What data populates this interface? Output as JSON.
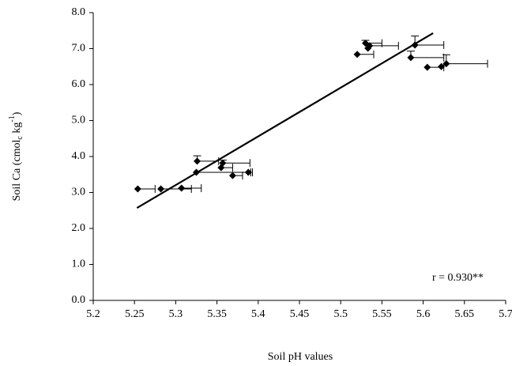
{
  "chart_data": {
    "type": "scatter",
    "xlabel": "Soil pH values",
    "ylabel": {
      "text": "Soil  Ca  (cmol",
      "sub": "c",
      "mid": " kg",
      "sup": "-1",
      "end": ")"
    },
    "annotation": "r = 0.930**",
    "color": "#000000",
    "x": [
      5.254,
      5.282,
      5.307,
      5.325,
      5.326,
      5.355,
      5.357,
      5.369,
      5.388,
      5.52,
      5.53,
      5.535,
      5.533,
      5.585,
      5.59,
      5.605,
      5.622,
      5.628
    ],
    "values": [
      3.1,
      3.1,
      3.12,
      3.56,
      3.87,
      3.69,
      3.82,
      3.47,
      3.56,
      6.84,
      7.15,
      7.08,
      7.01,
      6.75,
      7.1,
      6.48,
      6.5,
      6.58
    ],
    "x_err": [
      0.021,
      0.037,
      0.024,
      0.066,
      0.026,
      0.014,
      0.033,
      0.012,
      0.005,
      0.02,
      0.02,
      0.035,
      0,
      0.04,
      0.035,
      0.02,
      0,
      0.05
    ],
    "y_err": [
      0,
      0,
      0,
      0,
      0.15,
      0,
      0.08,
      0,
      0,
      0,
      0.08,
      0,
      0,
      0.18,
      0.25,
      0,
      0,
      0.25
    ],
    "trend_line": {
      "x": [
        5.253,
        5.612
      ],
      "y": [
        2.57,
        7.43
      ]
    },
    "xlim": [
      5.2,
      5.7
    ],
    "ylim": [
      0,
      8
    ],
    "xticks": [
      5.2,
      5.25,
      5.3,
      5.35,
      5.4,
      5.45,
      5.5,
      5.55,
      5.6,
      5.65,
      5.7
    ],
    "yticks": [
      {
        "value": 0,
        "label": "0.0"
      },
      {
        "value": 1,
        "label": "1.0"
      },
      {
        "value": 2,
        "label": "2.0"
      },
      {
        "value": 3,
        "label": "3.0"
      },
      {
        "value": 4,
        "label": "4.0"
      },
      {
        "value": 5,
        "label": "5.0"
      },
      {
        "value": 6,
        "label": "6.0"
      },
      {
        "value": 7,
        "label": "7.0"
      },
      {
        "value": 8,
        "label": "8.0"
      }
    ]
  }
}
